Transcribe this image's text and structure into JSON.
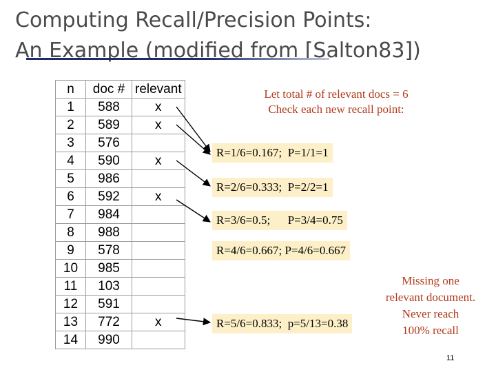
{
  "title": {
    "line1": "Computing Recall/Precision Points:",
    "line2": "An Example (modified from [Salton83])"
  },
  "table": {
    "headers": [
      "n",
      "doc #",
      "relevant"
    ],
    "rows": [
      {
        "n": "1",
        "doc": "588",
        "rel": "x"
      },
      {
        "n": "2",
        "doc": "589",
        "rel": "x"
      },
      {
        "n": "3",
        "doc": "576",
        "rel": ""
      },
      {
        "n": "4",
        "doc": "590",
        "rel": "x"
      },
      {
        "n": "5",
        "doc": "986",
        "rel": ""
      },
      {
        "n": "6",
        "doc": "592",
        "rel": "x"
      },
      {
        "n": "7",
        "doc": "984",
        "rel": ""
      },
      {
        "n": "8",
        "doc": "988",
        "rel": ""
      },
      {
        "n": "9",
        "doc": "578",
        "rel": ""
      },
      {
        "n": "10",
        "doc": "985",
        "rel": ""
      },
      {
        "n": "11",
        "doc": "103",
        "rel": ""
      },
      {
        "n": "12",
        "doc": "591",
        "rel": ""
      },
      {
        "n": "13",
        "doc": "772",
        "rel": "x"
      },
      {
        "n": "14",
        "doc": "990",
        "rel": ""
      }
    ]
  },
  "note": {
    "line1": "Let total # of relevant docs = 6",
    "line2": "Check each new recall point:"
  },
  "recall_points": [
    "R=1/6=0.167;  P=1/1=1",
    "R=2/6=0.333;  P=2/2=1",
    "R=3/6=0.5;      P=3/4=0.75",
    "R=4/6=0.667; P=4/6=0.667",
    "R=5/6=0.833;  p=5/13=0.38"
  ],
  "missing_note": {
    "line1": "Missing one",
    "line2": "relevant document.",
    "line3": "Never reach",
    "line4": "100% recall"
  },
  "page_number": "11",
  "colors": {
    "title": "#4a4a4a",
    "note": "#b23a1c",
    "box_fill": "#fdf0c8",
    "rule": "#1f2a6b"
  }
}
